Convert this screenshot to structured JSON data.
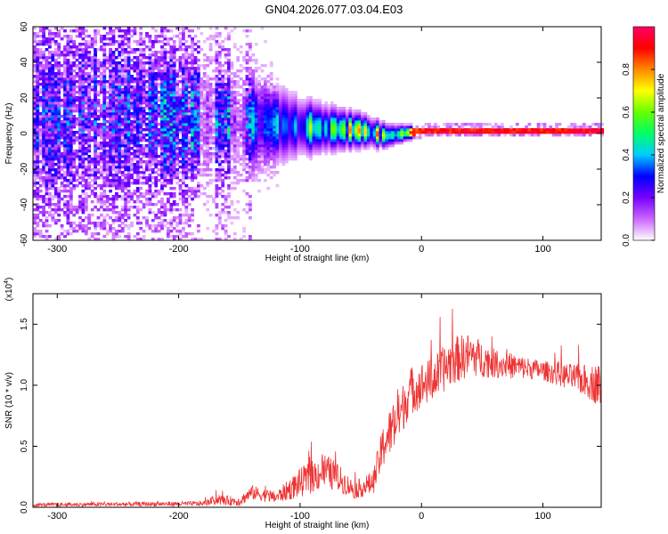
{
  "title": "GN04.2026.077.03.04.E03",
  "chart_data": [
    {
      "type": "heatmap",
      "xlabel": "Height of straight line (km)",
      "ylabel": "Frequency (Hz)",
      "xlim": [
        -320,
        148
      ],
      "ylim": [
        -60,
        60
      ],
      "xticks": [
        -300,
        -200,
        -100,
        0,
        100
      ],
      "yticks": [
        -60,
        -40,
        -20,
        0,
        20,
        40,
        60
      ],
      "colorbar": {
        "label": "Normalized spectral amplitude",
        "range": [
          0.0,
          1.0
        ],
        "ticks": [
          "0.0",
          "0.2",
          "0.4",
          "0.6",
          "0.8"
        ],
        "colors": [
          "#ffffff",
          "#cc66ff",
          "#7700ff",
          "#0000ff",
          "#00ccff",
          "#00ff66",
          "#66ff00",
          "#ffff00",
          "#ff8800",
          "#ff0000",
          "#ff0066"
        ]
      },
      "ridge_profile": [
        {
          "x": -320,
          "f": 8,
          "spread": 60,
          "amp": 0.18
        },
        {
          "x": -250,
          "f": 10,
          "spread": 55,
          "amp": 0.22
        },
        {
          "x": -200,
          "f": 8,
          "spread": 45,
          "amp": 0.28
        },
        {
          "x": -150,
          "f": 6,
          "spread": 30,
          "amp": 0.32
        },
        {
          "x": -100,
          "f": 3,
          "spread": 14,
          "amp": 0.45
        },
        {
          "x": -50,
          "f": 1,
          "spread": 8,
          "amp": 0.6
        },
        {
          "x": -30,
          "f": -2,
          "spread": 6,
          "amp": 0.55
        },
        {
          "x": 0,
          "f": 1,
          "spread": 2,
          "amp": 0.92
        },
        {
          "x": 148,
          "f": 1,
          "spread": 2,
          "amp": 0.92
        }
      ]
    },
    {
      "type": "line",
      "xlabel": "Height of straight line (km)",
      "ylabel": "SNR (10 * v/v)",
      "y_multiplier": "(x10",
      "y_multiplier_exp": "4",
      "y_multiplier_close": ")",
      "xlim": [
        -320,
        148
      ],
      "ylim": [
        0,
        1.75
      ],
      "xticks": [
        -300,
        -200,
        -100,
        0,
        100
      ],
      "yticks": [
        "0.0",
        "0.5",
        "1.0",
        "1.5"
      ],
      "color": "#ee3333",
      "envelope": [
        {
          "x": -320,
          "mean": 0.02,
          "noise": 0.015
        },
        {
          "x": -180,
          "mean": 0.03,
          "noise": 0.02
        },
        {
          "x": -170,
          "mean": 0.06,
          "noise": 0.04
        },
        {
          "x": -150,
          "mean": 0.05,
          "noise": 0.04
        },
        {
          "x": -140,
          "mean": 0.12,
          "noise": 0.06
        },
        {
          "x": -120,
          "mean": 0.08,
          "noise": 0.05
        },
        {
          "x": -100,
          "mean": 0.2,
          "noise": 0.12
        },
        {
          "x": -80,
          "mean": 0.3,
          "noise": 0.15
        },
        {
          "x": -70,
          "mean": 0.25,
          "noise": 0.12
        },
        {
          "x": -55,
          "mean": 0.14,
          "noise": 0.07
        },
        {
          "x": -40,
          "mean": 0.2,
          "noise": 0.1
        },
        {
          "x": -30,
          "mean": 0.55,
          "noise": 0.2
        },
        {
          "x": -20,
          "mean": 0.7,
          "noise": 0.2
        },
        {
          "x": -10,
          "mean": 0.95,
          "noise": 0.2
        },
        {
          "x": 10,
          "mean": 1.05,
          "noise": 0.18
        },
        {
          "x": 25,
          "mean": 1.2,
          "noise": 0.2
        },
        {
          "x": 40,
          "mean": 1.25,
          "noise": 0.18
        },
        {
          "x": 60,
          "mean": 1.18,
          "noise": 0.12
        },
        {
          "x": 100,
          "mean": 1.12,
          "noise": 0.08
        },
        {
          "x": 130,
          "mean": 1.05,
          "noise": 0.12
        },
        {
          "x": 148,
          "mean": 1.0,
          "noise": 0.18
        }
      ]
    }
  ]
}
